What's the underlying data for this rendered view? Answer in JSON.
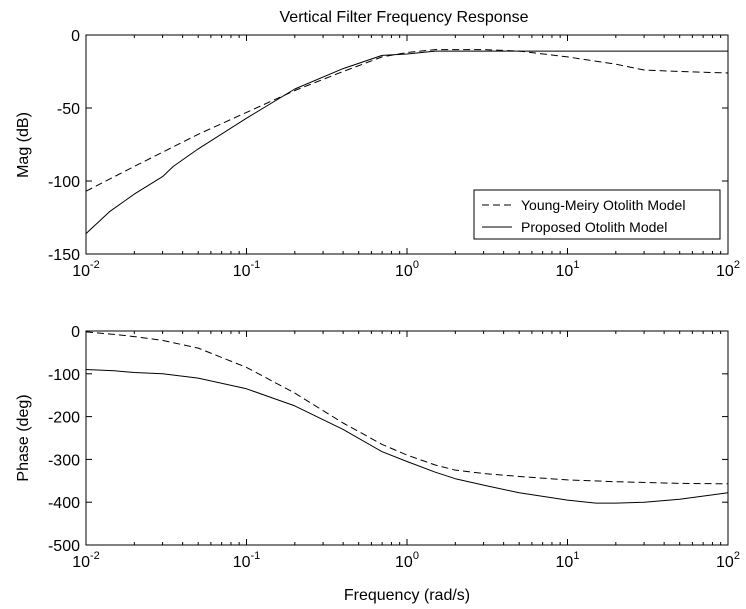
{
  "figure": {
    "title": "Vertical Filter Frequency Response"
  },
  "chart_data": [
    {
      "type": "line",
      "title": "Vertical Filter Frequency Response",
      "xlabel": "",
      "ylabel": "Mag (dB)",
      "xscale": "log",
      "xlim": [
        0.01,
        100
      ],
      "ylim": [
        -150,
        0
      ],
      "x_ticks": [
        0.01,
        0.1,
        1,
        10,
        100
      ],
      "x_tick_labels": [
        {
          "base": "10",
          "exp": "-2"
        },
        {
          "base": "10",
          "exp": "-1"
        },
        {
          "base": "10",
          "exp": "0"
        },
        {
          "base": "10",
          "exp": "1"
        },
        {
          "base": "10",
          "exp": "2"
        }
      ],
      "y_ticks": [
        -150,
        -100,
        -50,
        0
      ],
      "y_tick_labels": [
        "-150",
        "-100",
        "-50",
        "0"
      ],
      "grid": false,
      "legend": {
        "placement": "bottom-right",
        "entries": [
          "Young-Meiry Otolith Model",
          "Proposed Otolith Model"
        ]
      },
      "series": [
        {
          "name": "Young-Meiry Otolith Model",
          "style": "dashed",
          "color": "#000000",
          "x": [
            0.01,
            0.02,
            0.05,
            0.1,
            0.2,
            0.4,
            0.7,
            1,
            1.5,
            2,
            3,
            5,
            10,
            20,
            30,
            50,
            100
          ],
          "y": [
            -107,
            -90,
            -68,
            -53,
            -38,
            -25,
            -15,
            -12,
            -10,
            -10,
            -10,
            -11,
            -15,
            -20,
            -24,
            -25,
            -26
          ]
        },
        {
          "name": "Proposed Otolith Model",
          "style": "solid",
          "color": "#000000",
          "x": [
            0.01,
            0.014,
            0.02,
            0.03,
            0.035,
            0.05,
            0.1,
            0.2,
            0.4,
            0.7,
            1,
            1.5,
            2,
            3,
            5,
            10,
            100
          ],
          "y": [
            -136,
            -121,
            -109,
            -97,
            -90,
            -78,
            -57,
            -37,
            -23,
            -14,
            -13,
            -11,
            -11,
            -11,
            -11,
            -11,
            -11
          ]
        }
      ]
    },
    {
      "type": "line",
      "title": "",
      "xlabel": "Frequency (rad/s)",
      "ylabel": "Phase (deg)",
      "xscale": "log",
      "xlim": [
        0.01,
        100
      ],
      "ylim": [
        -500,
        0
      ],
      "x_ticks": [
        0.01,
        0.1,
        1,
        10,
        100
      ],
      "x_tick_labels": [
        {
          "base": "10",
          "exp": "-2"
        },
        {
          "base": "10",
          "exp": "-1"
        },
        {
          "base": "10",
          "exp": "0"
        },
        {
          "base": "10",
          "exp": "1"
        },
        {
          "base": "10",
          "exp": "2"
        }
      ],
      "y_ticks": [
        -500,
        -400,
        -300,
        -200,
        -100,
        0
      ],
      "y_tick_labels": [
        "-500",
        "-400",
        "-300",
        "-200",
        "-100",
        "0"
      ],
      "grid": false,
      "series": [
        {
          "name": "Young-Meiry Otolith Model",
          "style": "dashed",
          "color": "#000000",
          "x": [
            0.01,
            0.015,
            0.02,
            0.03,
            0.05,
            0.1,
            0.2,
            0.4,
            0.7,
            1,
            1.5,
            2,
            3,
            5,
            10,
            20,
            50,
            100
          ],
          "y": [
            -2,
            -8,
            -13,
            -22,
            -40,
            -85,
            -145,
            -215,
            -265,
            -290,
            -313,
            -325,
            -333,
            -340,
            -348,
            -352,
            -356,
            -357
          ]
        },
        {
          "name": "Proposed Otolith Model",
          "style": "solid",
          "color": "#000000",
          "x": [
            0.01,
            0.015,
            0.02,
            0.03,
            0.05,
            0.1,
            0.2,
            0.4,
            0.7,
            1,
            1.5,
            2,
            3,
            5,
            10,
            15,
            20,
            30,
            50,
            100
          ],
          "y": [
            -90,
            -93,
            -97,
            -100,
            -110,
            -135,
            -175,
            -230,
            -282,
            -305,
            -330,
            -345,
            -360,
            -378,
            -395,
            -402,
            -402,
            -400,
            -393,
            -378
          ]
        }
      ]
    }
  ]
}
